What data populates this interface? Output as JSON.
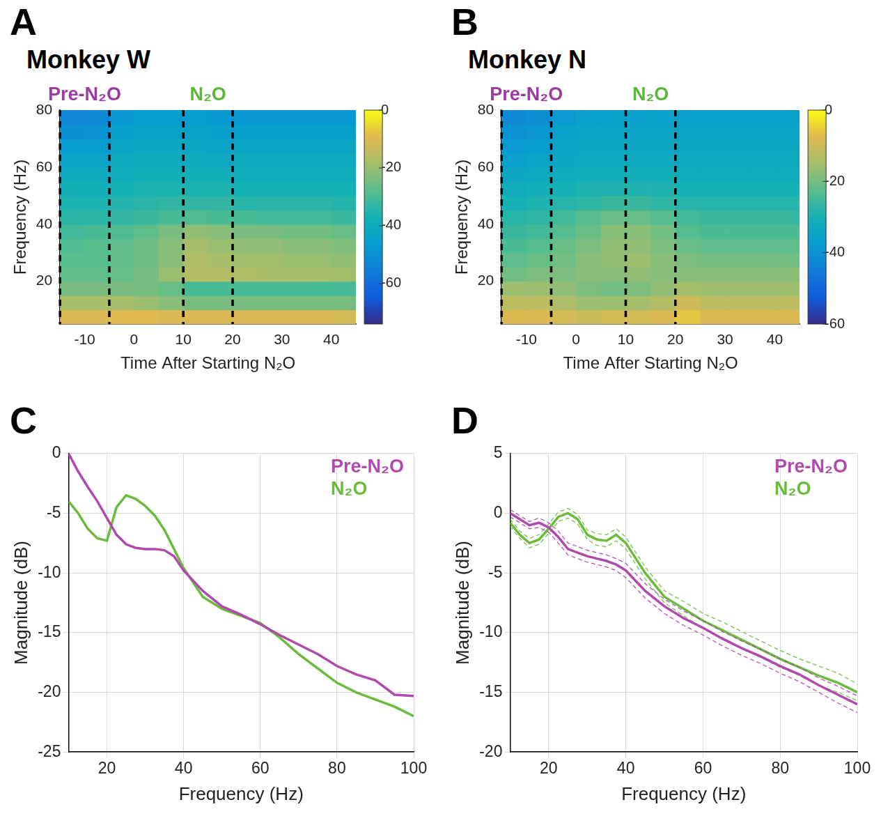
{
  "chart_data": [
    {
      "type": "heatmap",
      "panel": "A",
      "title": "Monkey W",
      "x_label": "Time After Starting N₂O",
      "y_label": "Frequency (Hz)",
      "xlim": [
        -15,
        45
      ],
      "xticks": [
        -10,
        0,
        10,
        20,
        30,
        40
      ],
      "ylim": [
        5,
        80
      ],
      "yticks": [
        20,
        40,
        60,
        80
      ],
      "annotations": [
        {
          "text": "Pre-N₂O",
          "x_range": [
            -15,
            -5
          ],
          "color": "#9b3d9e"
        },
        {
          "text": "N₂O",
          "x_range": [
            10,
            20
          ],
          "color": "#5cb83a"
        }
      ],
      "time": [
        -12.5,
        -7.5,
        -2.5,
        2.5,
        7.5,
        12.5,
        17.5,
        22.5,
        27.5,
        32.5,
        37.5,
        42.5
      ],
      "frequency": [
        7.5,
        12.5,
        17.5,
        22.5,
        27.5,
        32.5,
        37.5,
        42.5,
        47.5,
        52.5,
        57.5,
        62.5,
        67.5,
        72.5,
        77.5
      ],
      "cells": [
        [
          -10,
          -10,
          -9,
          -9,
          -10,
          -10,
          -10,
          -10,
          -10,
          -10,
          -10,
          -11
        ],
        [
          -18,
          -18,
          -18,
          -20,
          -22,
          -24,
          -24,
          -24,
          -24,
          -24,
          -24,
          -24
        ],
        [
          -24,
          -24,
          -24,
          -24,
          -26,
          -30,
          -30,
          -30,
          -30,
          -30,
          -30,
          -30
        ],
        [
          -27,
          -27,
          -26,
          -24,
          -20,
          -16,
          -16,
          -17,
          -18,
          -18,
          -18,
          -19
        ],
        [
          -28,
          -28,
          -27,
          -25,
          -22,
          -17,
          -18,
          -19,
          -19,
          -20,
          -20,
          -21
        ],
        [
          -29,
          -28,
          -27,
          -25,
          -22,
          -18,
          -20,
          -21,
          -21,
          -22,
          -22,
          -23
        ],
        [
          -31,
          -30,
          -29,
          -27,
          -24,
          -21,
          -22,
          -24,
          -24,
          -25,
          -25,
          -26
        ],
        [
          -34,
          -34,
          -33,
          -32,
          -30,
          -29,
          -30,
          -30,
          -31,
          -31,
          -31,
          -32
        ],
        [
          -36,
          -36,
          -35,
          -34,
          -33,
          -33,
          -33,
          -34,
          -34,
          -34,
          -34,
          -35
        ],
        [
          -38,
          -38,
          -37,
          -36,
          -36,
          -36,
          -36,
          -37,
          -37,
          -37,
          -37,
          -37
        ],
        [
          -40,
          -40,
          -39,
          -38,
          -38,
          -38,
          -38,
          -39,
          -39,
          -39,
          -39,
          -39
        ],
        [
          -43,
          -43,
          -41,
          -40,
          -40,
          -40,
          -41,
          -41,
          -41,
          -41,
          -41,
          -41
        ],
        [
          -46,
          -46,
          -43,
          -42,
          -42,
          -42,
          -43,
          -43,
          -43,
          -43,
          -43,
          -43
        ],
        [
          -50,
          -49,
          -45,
          -44,
          -44,
          -44,
          -45,
          -45,
          -45,
          -45,
          -45,
          -45
        ],
        [
          -53,
          -52,
          -47,
          -46,
          -46,
          -46,
          -47,
          -47,
          -47,
          -47,
          -47,
          -47
        ]
      ],
      "colorbar": {
        "range": [
          -74,
          0
        ],
        "ticks": [
          0,
          -20,
          -40,
          -60
        ]
      }
    },
    {
      "type": "heatmap",
      "panel": "B",
      "title": "Monkey N",
      "x_label": "Time After Starting N₂O",
      "y_label": "Frequency (Hz)",
      "xlim": [
        -15,
        45
      ],
      "xticks": [
        -10,
        0,
        10,
        20,
        30,
        40
      ],
      "ylim": [
        5,
        80
      ],
      "yticks": [
        20,
        40,
        60,
        80
      ],
      "annotations": [
        {
          "text": "Pre-N₂O",
          "x_range": [
            -15,
            -5
          ],
          "color": "#9b3d9e"
        },
        {
          "text": "N₂O",
          "x_range": [
            10,
            20
          ],
          "color": "#5cb83a"
        }
      ],
      "time": [
        -12.5,
        -7.5,
        -2.5,
        2.5,
        7.5,
        12.5,
        17.5,
        22.5,
        27.5,
        32.5,
        37.5,
        42.5
      ],
      "frequency": [
        7.5,
        12.5,
        17.5,
        22.5,
        27.5,
        32.5,
        37.5,
        42.5,
        47.5,
        52.5,
        57.5,
        62.5,
        67.5,
        72.5,
        77.5
      ],
      "cells": [
        [
          -8,
          -8,
          -9,
          -10,
          -9,
          -9,
          -8,
          -6,
          -8,
          -8,
          -8,
          -8
        ],
        [
          -12,
          -12,
          -14,
          -16,
          -16,
          -15,
          -13,
          -10,
          -12,
          -12,
          -12,
          -12
        ],
        [
          -16,
          -16,
          -17,
          -19,
          -20,
          -19,
          -17,
          -15,
          -16,
          -16,
          -16,
          -16
        ],
        [
          -20,
          -19,
          -19,
          -18,
          -18,
          -17,
          -18,
          -18,
          -18,
          -18,
          -18,
          -18
        ],
        [
          -22,
          -21,
          -20,
          -18,
          -17,
          -16,
          -18,
          -19,
          -20,
          -20,
          -20,
          -20
        ],
        [
          -24,
          -23,
          -21,
          -19,
          -17,
          -17,
          -19,
          -21,
          -22,
          -22,
          -22,
          -22
        ],
        [
          -26,
          -25,
          -23,
          -21,
          -18,
          -18,
          -20,
          -23,
          -24,
          -24,
          -24,
          -24
        ],
        [
          -28,
          -27,
          -25,
          -23,
          -21,
          -21,
          -23,
          -25,
          -26,
          -26,
          -26,
          -26
        ],
        [
          -30,
          -29,
          -28,
          -27,
          -26,
          -26,
          -27,
          -28,
          -28,
          -28,
          -28,
          -28
        ],
        [
          -32,
          -31,
          -30,
          -29,
          -29,
          -29,
          -29,
          -30,
          -30,
          -30,
          -30,
          -30
        ],
        [
          -34,
          -33,
          -32,
          -31,
          -31,
          -31,
          -31,
          -32,
          -32,
          -32,
          -32,
          -32
        ],
        [
          -36,
          -35,
          -34,
          -33,
          -33,
          -33,
          -33,
          -33,
          -33,
          -33,
          -33,
          -33
        ],
        [
          -38,
          -37,
          -35,
          -34,
          -34,
          -34,
          -34,
          -34,
          -34,
          -34,
          -34,
          -34
        ],
        [
          -40,
          -39,
          -36,
          -35,
          -35,
          -35,
          -35,
          -35,
          -35,
          -35,
          -35,
          -35
        ],
        [
          -42,
          -41,
          -38,
          -36,
          -36,
          -36,
          -36,
          -36,
          -36,
          -36,
          -36,
          -36
        ]
      ],
      "colorbar": {
        "range": [
          -60,
          0
        ],
        "ticks": [
          0,
          -20,
          -40,
          -60
        ]
      }
    },
    {
      "type": "line",
      "panel": "C",
      "x_label": "Frequency (Hz)",
      "y_label": "Magnitude (dB)",
      "xlim": [
        10,
        100
      ],
      "xticks": [
        20,
        40,
        60,
        80,
        100
      ],
      "ylim": [
        -25,
        0
      ],
      "yticks": [
        -25,
        -20,
        -15,
        -10,
        -5,
        0
      ],
      "grid": true,
      "legend": "upper right",
      "x": [
        10,
        12.5,
        15,
        17.5,
        20,
        22.5,
        25,
        27.5,
        30,
        32.5,
        35,
        37.5,
        40,
        45,
        50,
        55,
        60,
        65,
        70,
        75,
        80,
        85,
        90,
        95,
        100
      ],
      "series": [
        {
          "name": "Pre-N₂O",
          "color": "#b04aae",
          "values": [
            0,
            -1.5,
            -2.8,
            -4,
            -5.4,
            -6.8,
            -7.6,
            -7.9,
            -8,
            -8,
            -8.1,
            -8.6,
            -9.8,
            -11.5,
            -12.8,
            -13.5,
            -14.3,
            -15.2,
            -16,
            -16.8,
            -17.8,
            -18.5,
            -19,
            -20.2,
            -20.3
          ]
        },
        {
          "name": "N₂O",
          "color": "#6cbb3c",
          "values": [
            -4,
            -5,
            -6.3,
            -7.1,
            -7.3,
            -4.5,
            -3.5,
            -3.8,
            -4.4,
            -5.2,
            -6.4,
            -8,
            -9.6,
            -12,
            -13,
            -13.6,
            -14.2,
            -15.4,
            -16.8,
            -18,
            -19.2,
            -20,
            -20.6,
            -21.2,
            -22
          ]
        }
      ]
    },
    {
      "type": "line",
      "panel": "D",
      "x_label": "Frequency (Hz)",
      "y_label": "Magnitude (dB)",
      "xlim": [
        10,
        100
      ],
      "xticks": [
        20,
        40,
        60,
        80,
        100
      ],
      "ylim": [
        -20,
        5
      ],
      "yticks": [
        -20,
        -15,
        -10,
        -5,
        0,
        5
      ],
      "grid": true,
      "legend": "upper right",
      "x": [
        10,
        12.5,
        15,
        17.5,
        20,
        22.5,
        25,
        27.5,
        30,
        32.5,
        35,
        37.5,
        40,
        45,
        50,
        55,
        60,
        65,
        70,
        75,
        80,
        85,
        90,
        95,
        100
      ],
      "series": [
        {
          "name": "Pre-N₂O",
          "color": "#b04aae",
          "values": [
            0,
            -0.5,
            -1,
            -0.8,
            -1.2,
            -2,
            -3,
            -3.3,
            -3.6,
            -3.8,
            -4,
            -4.3,
            -4.8,
            -6.5,
            -7.8,
            -8.8,
            -9.6,
            -10.5,
            -11.3,
            -12,
            -12.8,
            -13.5,
            -14.4,
            -15.2,
            -16
          ],
          "lower": [
            -0.3,
            -0.8,
            -1.3,
            -1.2,
            -1.6,
            -2.5,
            -3.5,
            -3.8,
            -4.1,
            -4.3,
            -4.5,
            -4.8,
            -5.4,
            -7.1,
            -8.4,
            -9.4,
            -10.2,
            -11.1,
            -11.9,
            -12.6,
            -13.4,
            -14.1,
            -15,
            -15.9,
            -16.7
          ],
          "upper": [
            0.3,
            -0.2,
            -0.7,
            -0.4,
            -0.8,
            -1.5,
            -2.5,
            -2.8,
            -3.1,
            -3.3,
            -3.5,
            -3.8,
            -4.2,
            -5.9,
            -7.2,
            -8.2,
            -9,
            -9.9,
            -10.7,
            -11.4,
            -12.2,
            -12.9,
            -13.8,
            -14.5,
            -15.3
          ]
        },
        {
          "name": "N₂O",
          "color": "#6cbb3c",
          "values": [
            -0.8,
            -1.8,
            -2.5,
            -2.2,
            -1.3,
            -0.3,
            0,
            -0.5,
            -1.8,
            -2.2,
            -2.3,
            -1.8,
            -2.5,
            -5,
            -7,
            -8,
            -9,
            -9.8,
            -10.6,
            -11.4,
            -12.2,
            -12.9,
            -13.6,
            -14.2,
            -15
          ],
          "lower": [
            -1.1,
            -2.1,
            -2.9,
            -2.6,
            -1.7,
            -0.7,
            -0.4,
            -0.9,
            -2.2,
            -2.7,
            -2.8,
            -2.3,
            -3,
            -5.5,
            -7.5,
            -8.6,
            -9.6,
            -10.5,
            -11.3,
            -12.1,
            -12.9,
            -13.6,
            -14.4,
            -15,
            -15.7
          ],
          "upper": [
            -0.5,
            -1.5,
            -2.1,
            -1.8,
            -0.9,
            0.1,
            0.4,
            -0.1,
            -1.4,
            -1.7,
            -1.8,
            -1.3,
            -2,
            -4.5,
            -6.5,
            -7.4,
            -8.4,
            -9.1,
            -9.9,
            -10.7,
            -11.5,
            -12.2,
            -12.8,
            -13.4,
            -14.3
          ]
        }
      ]
    }
  ]
}
